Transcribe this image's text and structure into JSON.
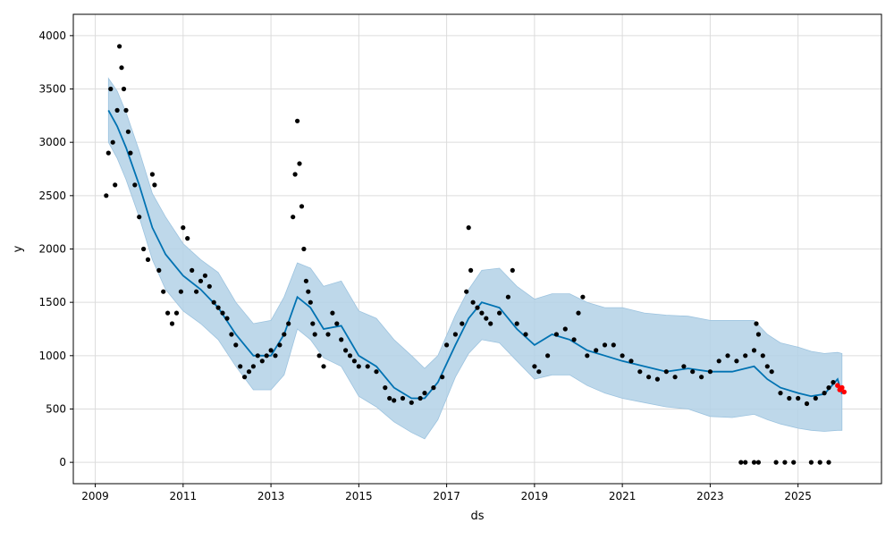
{
  "chart_data": {
    "type": "line",
    "title": "",
    "xlabel": "ds",
    "ylabel": "y",
    "xlim": [
      2008.5,
      2026.9
    ],
    "ylim": [
      -200,
      4200
    ],
    "x_ticks": [
      "2009",
      "2011",
      "2013",
      "2015",
      "2017",
      "2019",
      "2021",
      "2023",
      "2025"
    ],
    "y_ticks": [
      0,
      500,
      1000,
      1500,
      2000,
      2500,
      3000,
      3500,
      4000
    ],
    "grid": true,
    "legend": "none",
    "colors": {
      "forecast_line": "#0072B2",
      "uncertainty_band": "#b3d1e6",
      "observed_points": "#000000",
      "recent_points": "#ff0000"
    },
    "series": [
      {
        "role": "forecast",
        "x": [
          2009.3,
          2009.5,
          2009.7,
          2010.0,
          2010.3,
          2010.6,
          2011.0,
          2011.4,
          2011.8,
          2012.2,
          2012.6,
          2013.0,
          2013.3,
          2013.6,
          2013.9,
          2014.2,
          2014.6,
          2015.0,
          2015.4,
          2015.8,
          2016.2,
          2016.5,
          2016.8,
          2017.2,
          2017.5,
          2017.8,
          2018.2,
          2018.6,
          2019.0,
          2019.4,
          2019.8,
          2020.2,
          2020.6,
          2021.0,
          2021.5,
          2022.0,
          2022.5,
          2023.0,
          2023.5,
          2024.0,
          2024.3,
          2024.6,
          2025.0,
          2025.3,
          2025.6,
          2025.9,
          2026.0
        ],
        "values": [
          3300,
          3150,
          2950,
          2600,
          2200,
          1950,
          1750,
          1620,
          1450,
          1200,
          1000,
          1000,
          1200,
          1550,
          1450,
          1250,
          1280,
          1000,
          900,
          700,
          600,
          600,
          750,
          1100,
          1350,
          1500,
          1450,
          1250,
          1100,
          1200,
          1150,
          1050,
          1000,
          950,
          900,
          850,
          880,
          850,
          850,
          900,
          780,
          700,
          650,
          620,
          640,
          780,
          640
        ]
      },
      {
        "role": "uncertainty_upper",
        "x": [
          2009.3,
          2009.5,
          2009.7,
          2010.0,
          2010.3,
          2010.6,
          2011.0,
          2011.4,
          2011.8,
          2012.2,
          2012.6,
          2013.0,
          2013.3,
          2013.6,
          2013.9,
          2014.2,
          2014.6,
          2015.0,
          2015.4,
          2015.8,
          2016.2,
          2016.5,
          2016.8,
          2017.2,
          2017.5,
          2017.8,
          2018.2,
          2018.6,
          2019.0,
          2019.4,
          2019.8,
          2020.2,
          2020.6,
          2021.0,
          2021.5,
          2022.0,
          2022.5,
          2023.0,
          2023.5,
          2024.0,
          2024.3,
          2024.6,
          2025.0,
          2025.3,
          2025.6,
          2025.9,
          2026.0
        ],
        "values": [
          3600,
          3480,
          3280,
          2920,
          2520,
          2300,
          2050,
          1900,
          1780,
          1500,
          1300,
          1330,
          1550,
          1870,
          1820,
          1650,
          1700,
          1420,
          1350,
          1150,
          1000,
          880,
          1000,
          1380,
          1620,
          1800,
          1820,
          1650,
          1530,
          1580,
          1580,
          1500,
          1450,
          1450,
          1400,
          1380,
          1370,
          1330,
          1330,
          1330,
          1200,
          1120,
          1080,
          1040,
          1020,
          1030,
          1020
        ]
      },
      {
        "role": "uncertainty_lower",
        "x": [
          2009.3,
          2009.5,
          2009.7,
          2010.0,
          2010.3,
          2010.6,
          2011.0,
          2011.4,
          2011.8,
          2012.2,
          2012.6,
          2013.0,
          2013.3,
          2013.6,
          2013.9,
          2014.2,
          2014.6,
          2015.0,
          2015.4,
          2015.8,
          2016.2,
          2016.5,
          2016.8,
          2017.2,
          2017.5,
          2017.8,
          2018.2,
          2018.6,
          2019.0,
          2019.4,
          2019.8,
          2020.2,
          2020.6,
          2021.0,
          2021.5,
          2022.0,
          2022.5,
          2023.0,
          2023.5,
          2024.0,
          2024.3,
          2024.6,
          2025.0,
          2025.3,
          2025.6,
          2025.9,
          2026.0
        ],
        "values": [
          3000,
          2850,
          2650,
          2300,
          1900,
          1620,
          1420,
          1300,
          1150,
          900,
          680,
          680,
          820,
          1250,
          1150,
          980,
          900,
          620,
          520,
          380,
          280,
          220,
          400,
          800,
          1020,
          1150,
          1120,
          950,
          780,
          820,
          820,
          720,
          650,
          600,
          560,
          520,
          500,
          430,
          420,
          450,
          400,
          360,
          320,
          300,
          290,
          300,
          300
        ]
      },
      {
        "role": "observed",
        "x": [
          2009.25,
          2009.3,
          2009.35,
          2009.4,
          2009.45,
          2009.5,
          2009.55,
          2009.6,
          2009.65,
          2009.7,
          2009.75,
          2009.8,
          2009.9,
          2010.0,
          2010.1,
          2010.2,
          2010.3,
          2010.35,
          2010.45,
          2010.55,
          2010.65,
          2010.75,
          2010.85,
          2010.95,
          2011.0,
          2011.1,
          2011.2,
          2011.3,
          2011.4,
          2011.5,
          2011.6,
          2011.7,
          2011.8,
          2011.9,
          2012.0,
          2012.1,
          2012.2,
          2012.3,
          2012.4,
          2012.5,
          2012.6,
          2012.7,
          2012.8,
          2012.9,
          2013.0,
          2013.1,
          2013.2,
          2013.3,
          2013.4,
          2013.5,
          2013.55,
          2013.6,
          2013.65,
          2013.7,
          2013.75,
          2013.8,
          2013.85,
          2013.9,
          2013.95,
          2014.0,
          2014.1,
          2014.2,
          2014.3,
          2014.4,
          2014.5,
          2014.6,
          2014.7,
          2014.8,
          2014.9,
          2015.0,
          2015.2,
          2015.4,
          2015.6,
          2015.7,
          2015.8,
          2016.0,
          2016.2,
          2016.4,
          2016.5,
          2016.7,
          2016.9,
          2017.0,
          2017.2,
          2017.35,
          2017.45,
          2017.5,
          2017.55,
          2017.6,
          2017.7,
          2017.8,
          2017.9,
          2018.0,
          2018.2,
          2018.4,
          2018.5,
          2018.6,
          2018.8,
          2019.0,
          2019.1,
          2019.3,
          2019.5,
          2019.7,
          2019.9,
          2020.0,
          2020.1,
          2020.2,
          2020.4,
          2020.6,
          2020.8,
          2021.0,
          2021.2,
          2021.4,
          2021.6,
          2021.8,
          2022.0,
          2022.2,
          2022.4,
          2022.6,
          2022.8,
          2023.0,
          2023.2,
          2023.4,
          2023.6,
          2023.8,
          2024.0,
          2024.05,
          2024.1,
          2024.2,
          2024.3,
          2024.4,
          2024.6,
          2024.8,
          2025.0,
          2025.2,
          2025.4,
          2025.6,
          2025.7,
          2025.8,
          2023.7,
          2023.8,
          2024.0,
          2024.1,
          2024.5,
          2024.7,
          2024.9,
          2025.3,
          2025.5,
          2025.7
        ],
        "values": [
          2500,
          2900,
          3500,
          3000,
          2600,
          3300,
          3900,
          3700,
          3500,
          3300,
          3100,
          2900,
          2600,
          2300,
          2000,
          1900,
          2700,
          2600,
          1800,
          1600,
          1400,
          1300,
          1400,
          1600,
          2200,
          2100,
          1800,
          1600,
          1700,
          1750,
          1650,
          1500,
          1450,
          1400,
          1350,
          1200,
          1100,
          900,
          800,
          850,
          900,
          1000,
          950,
          1000,
          1050,
          1000,
          1100,
          1200,
          1300,
          2300,
          2700,
          3200,
          2800,
          2400,
          2000,
          1700,
          1600,
          1500,
          1300,
          1200,
          1000,
          900,
          1200,
          1400,
          1300,
          1150,
          1050,
          1000,
          950,
          900,
          900,
          850,
          700,
          600,
          580,
          600,
          560,
          600,
          650,
          700,
          800,
          1100,
          1200,
          1300,
          1600,
          2200,
          1800,
          1500,
          1450,
          1400,
          1350,
          1300,
          1400,
          1550,
          1800,
          1300,
          1200,
          900,
          850,
          1000,
          1200,
          1250,
          1150,
          1400,
          1550,
          1000,
          1050,
          1100,
          1100,
          1000,
          950,
          850,
          800,
          780,
          850,
          800,
          900,
          850,
          800,
          850,
          950,
          1000,
          950,
          1000,
          1050,
          1300,
          1200,
          1000,
          900,
          850,
          650,
          600,
          600,
          550,
          600,
          650,
          700,
          750,
          0,
          0,
          0,
          0,
          0,
          0,
          0,
          0,
          0,
          0
        ]
      },
      {
        "role": "recent",
        "x": [
          2025.9,
          2025.95,
          2026.0,
          2026.05
        ],
        "values": [
          720,
          680,
          700,
          660
        ]
      }
    ]
  }
}
